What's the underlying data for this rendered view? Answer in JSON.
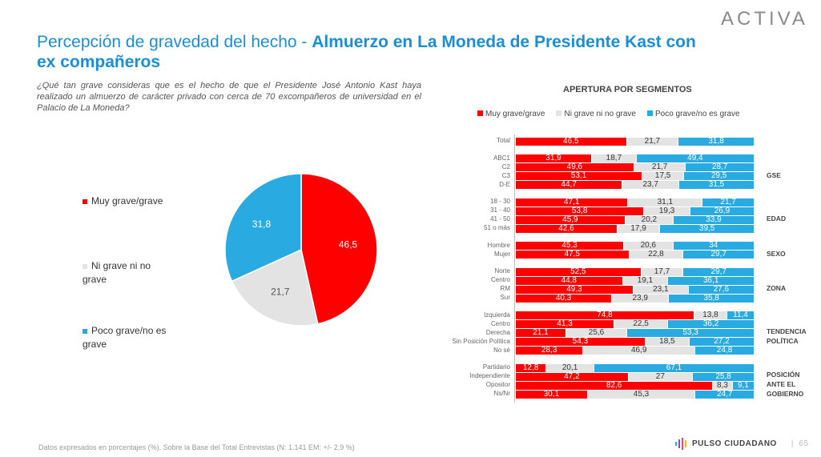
{
  "header": {
    "logo": "ACTIVA",
    "title_prefix": "Percepción de gravedad del hecho - ",
    "title_bold": "Almuerzo en La Moneda de Presidente Kast con ex compañeros"
  },
  "question": "¿Qué tan grave consideras que es el hecho de que el Presidente José Antonio Kast haya realizado un almuerzo de carácter privado con cerca de 70 excompañeros de universidad en el Palacio de La Moneda?",
  "colors": {
    "red": "#ff0000",
    "gray": "#e3e3e3",
    "blue": "#29abe2",
    "title": "#1a8fd6"
  },
  "chart_data": [
    {
      "type": "pie",
      "categories": [
        "Muy grave/grave",
        "Ni grave ni no grave",
        "Poco grave/no es grave"
      ],
      "values": [
        46.5,
        21.7,
        31.8
      ],
      "legend_placement": "left"
    },
    {
      "type": "bar",
      "stacked": true,
      "orientation": "horizontal",
      "title": "APERTURA POR SEGMENTOS",
      "legend_placement": "top",
      "series_names": [
        "Muy grave/grave",
        "Ni grave ni no grave",
        "Poco grave/no es grave"
      ],
      "groups": [
        {
          "name": "",
          "rows": [
            {
              "label": "Total",
              "values": [
                "46,5",
                "21,7",
                "31,8"
              ]
            }
          ]
        },
        {
          "name": "GSE",
          "rows": [
            {
              "label": "ABC1",
              "values": [
                "31,9",
                "18,7",
                "49,4"
              ]
            },
            {
              "label": "C2",
              "values": [
                "49,6",
                "21,7",
                "28,7"
              ]
            },
            {
              "label": "C3",
              "values": [
                "53,1",
                "17,5",
                "29,5"
              ]
            },
            {
              "label": "D-E",
              "values": [
                "44,7",
                "23,7",
                "31,5"
              ]
            }
          ]
        },
        {
          "name": "EDAD",
          "rows": [
            {
              "label": "18 - 30",
              "values": [
                "47,1",
                "31,1",
                "21,7"
              ]
            },
            {
              "label": "31 - 40",
              "values": [
                "53,8",
                "19,3",
                "26,9"
              ]
            },
            {
              "label": "41 - 50",
              "values": [
                "45,9",
                "20,2",
                "33,9"
              ]
            },
            {
              "label": "51 o más",
              "values": [
                "42,6",
                "17,9",
                "39,5"
              ]
            }
          ]
        },
        {
          "name": "SEXO",
          "rows": [
            {
              "label": "Hombre",
              "values": [
                "45,3",
                "20,6",
                "34"
              ]
            },
            {
              "label": "Mujer",
              "values": [
                "47,5",
                "22,8",
                "29,7"
              ]
            }
          ]
        },
        {
          "name": "ZONA",
          "rows": [
            {
              "label": "Norte",
              "values": [
                "52,5",
                "17,7",
                "29,7"
              ]
            },
            {
              "label": "Centro",
              "values": [
                "44,8",
                "19,1",
                "36,1"
              ]
            },
            {
              "label": "RM",
              "values": [
                "49,3",
                "23,1",
                "27,6"
              ]
            },
            {
              "label": "Sur",
              "values": [
                "40,3",
                "23,9",
                "35,8"
              ]
            }
          ]
        },
        {
          "name": "TENDENCIA POLÍTICA",
          "rows": [
            {
              "label": "Izquierda",
              "values": [
                "74,8",
                "13,8",
                "11,4"
              ]
            },
            {
              "label": "Centro",
              "values": [
                "41,3",
                "22,5",
                "36,2"
              ]
            },
            {
              "label": "Derecha",
              "values": [
                "21,1",
                "25,6",
                "53,3"
              ]
            },
            {
              "label": "Sin Posición Política",
              "values": [
                "54,3",
                "18,5",
                "27,2"
              ]
            },
            {
              "label": "No sé",
              "values": [
                "28,3",
                "46,9",
                "24,8"
              ]
            }
          ]
        },
        {
          "name": "POSICIÓN ANTE EL GOBIERNO",
          "rows": [
            {
              "label": "Partidario",
              "values": [
                "12,8",
                "20,1",
                "67,1"
              ]
            },
            {
              "label": "Independiente",
              "values": [
                "47,2",
                "27",
                "25,8"
              ]
            },
            {
              "label": "Opositor",
              "values": [
                "82,6",
                "8,3",
                "9,1"
              ]
            },
            {
              "label": "Ns/Nr",
              "values": [
                "30,1",
                "45,3",
                "24,7"
              ]
            }
          ]
        }
      ]
    }
  ],
  "pie_labels": [
    "46,5",
    "21,7",
    "31,8"
  ],
  "footer": {
    "note": "Datos expresados en porcentajes (%). Sobre la Base del Total Entrevistas (N: 1.141  EM: +/- 2,9 %)",
    "brand": "PULSO CIUDADANO",
    "page": "65"
  }
}
